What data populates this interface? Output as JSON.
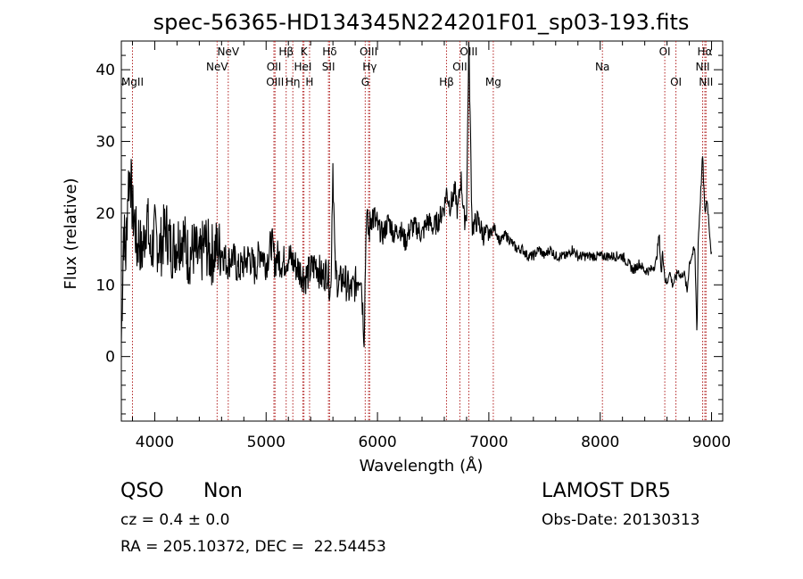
{
  "chart_data": {
    "type": "line",
    "title": "spec-56365-HD134345N224201F01_sp03-193.fits",
    "xlabel": "Wavelength (Å)",
    "ylabel": "Flux (relative)",
    "xlim": [
      3700,
      9100
    ],
    "ylim": [
      -9,
      44
    ],
    "xticks": [
      4000,
      5000,
      6000,
      7000,
      8000,
      9000
    ],
    "yticks": [
      0,
      10,
      20,
      30,
      40
    ],
    "grid": false,
    "line_color": "#000000",
    "marker_color": "#b22222",
    "spectrum": {
      "x": [
        3700,
        3720,
        3740,
        3760,
        3780,
        3800,
        3820,
        3840,
        3860,
        3880,
        3900,
        3930,
        3960,
        4000,
        4050,
        4100,
        4150,
        4200,
        4250,
        4300,
        4350,
        4400,
        4450,
        4500,
        4550,
        4600,
        4650,
        4700,
        4750,
        4800,
        4850,
        4900,
        4950,
        5000,
        5050,
        5080,
        5100,
        5150,
        5200,
        5250,
        5300,
        5350,
        5400,
        5450,
        5500,
        5550,
        5580,
        5600,
        5620,
        5650,
        5700,
        5750,
        5800,
        5850,
        5880,
        5900,
        5920,
        5950,
        6000,
        6050,
        6100,
        6150,
        6200,
        6250,
        6300,
        6350,
        6400,
        6450,
        6500,
        6550,
        6600,
        6620,
        6650,
        6700,
        6720,
        6750,
        6780,
        6800,
        6820,
        6850,
        6900,
        6950,
        7000,
        7050,
        7100,
        7150,
        7200,
        7250,
        7300,
        7350,
        7400,
        7450,
        7500,
        7550,
        7600,
        7650,
        7700,
        7750,
        7800,
        7850,
        7900,
        7950,
        8000,
        8050,
        8100,
        8150,
        8200,
        8250,
        8300,
        8350,
        8400,
        8450,
        8500,
        8530,
        8550,
        8560,
        8580,
        8600,
        8620,
        8650,
        8680,
        8700,
        8730,
        8750,
        8780,
        8800,
        8820,
        8850,
        8870,
        8880,
        8900,
        8920,
        8940,
        8960,
        8980,
        9000
      ],
      "y": [
        2,
        18,
        14,
        24,
        26,
        20,
        19,
        15,
        17,
        14,
        16,
        20,
        14,
        17,
        15,
        18,
        15,
        16,
        17,
        14,
        15,
        13,
        16,
        14,
        15,
        15,
        13,
        14,
        12,
        13,
        14,
        12,
        15,
        13,
        16,
        13,
        14,
        13,
        14,
        13,
        12,
        11,
        12,
        13,
        11,
        12,
        9,
        27,
        12,
        10,
        11,
        9,
        10,
        12,
        3,
        20,
        17,
        20,
        18,
        17,
        19,
        17,
        18,
        16,
        18,
        18,
        17,
        19,
        18,
        19,
        21,
        23,
        21,
        23,
        20,
        25,
        19,
        20,
        44,
        18,
        19,
        17,
        17,
        18,
        16,
        17,
        16,
        15,
        15,
        14,
        14,
        15,
        14,
        15,
        14,
        14,
        14,
        15,
        14,
        14,
        14,
        14,
        14,
        14,
        14,
        14,
        14,
        13,
        12,
        13,
        12,
        12,
        13,
        17,
        11,
        15,
        11,
        10,
        12,
        10,
        11,
        12,
        11,
        12,
        9,
        13,
        14,
        15,
        3,
        16,
        22,
        28,
        20,
        22,
        18,
        14
      ]
    },
    "lines": [
      {
        "label": "MgII",
        "x": 3800,
        "row": 3
      },
      {
        "label": "NeV",
        "x": 4560,
        "row": 2
      },
      {
        "label": "NeV",
        "x": 4660,
        "row": 1
      },
      {
        "label": "OII",
        "x": 5070,
        "row": 2
      },
      {
        "label": "OIII",
        "x": 5080,
        "row": 3
      },
      {
        "label": "Hβ",
        "x": 5180,
        "row": 1
      },
      {
        "label": "Hη",
        "x": 5240,
        "row": 3
      },
      {
        "label": "K",
        "x": 5340,
        "row": 1
      },
      {
        "label": "HeI",
        "x": 5330,
        "row": 2
      },
      {
        "label": "H",
        "x": 5390,
        "row": 3
      },
      {
        "label": "Hδ",
        "x": 5570,
        "row": 1
      },
      {
        "label": "SII",
        "x": 5560,
        "row": 2
      },
      {
        "label": "OIII",
        "x": 5920,
        "row": 1
      },
      {
        "label": "Hγ",
        "x": 5930,
        "row": 2
      },
      {
        "label": "G",
        "x": 5890,
        "row": 3
      },
      {
        "label": "Hβ",
        "x": 6620,
        "row": 3
      },
      {
        "label": "OII",
        "x": 6740,
        "row": 2
      },
      {
        "label": "OIII",
        "x": 6820,
        "row": 1
      },
      {
        "label": "Mg",
        "x": 7040,
        "row": 3
      },
      {
        "label": "Na",
        "x": 8020,
        "row": 2
      },
      {
        "label": "OI",
        "x": 8580,
        "row": 1
      },
      {
        "label": "OI",
        "x": 8680,
        "row": 3
      },
      {
        "label": "Hα",
        "x": 8940,
        "row": 1
      },
      {
        "label": "NII",
        "x": 8920,
        "row": 2
      },
      {
        "label": "NII",
        "x": 8950,
        "row": 3
      }
    ]
  },
  "info": {
    "class": "QSO",
    "subclass": "Non",
    "survey": "LAMOST DR5",
    "cz": "cz = 0.4 ± 0.0",
    "obs_date": "Obs-Date: 20130313",
    "radec": "RA = 205.10372, DEC =  22.54453"
  }
}
